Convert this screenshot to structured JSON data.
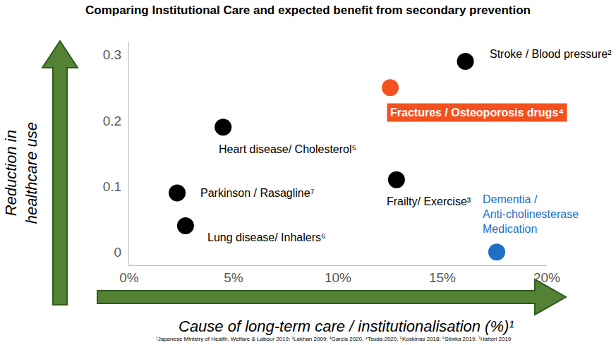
{
  "chart_data": {
    "type": "scatter",
    "title": "Comparing Institutional Care and expected benefit from secondary prevention",
    "x_label": "Cause of long-term care / institutionalisation (%)¹",
    "y_label": "Reduction in\nhealthcare use",
    "point_labels": [
      "Stroke / Blood pressure²",
      "Fractures / Osteoporosis drugs⁴",
      "Heart disease/ Cholesterol⁵",
      "Frailty/ Exercise³",
      "Parkinson / Rasagline⁷",
      "Lung disease/ Inhalers⁶",
      "Dementia /\nAnti-cholinesterase\nMedication"
    ],
    "x": [
      16.1,
      12.5,
      4.5,
      12.8,
      2.3,
      2.7,
      17.6
    ],
    "values": [
      0.29,
      0.25,
      0.19,
      0.11,
      0.09,
      0.04,
      0
    ],
    "colors": [
      "#000000",
      "#f4511e",
      "#000000",
      "#000000",
      "#000000",
      "#000000",
      "#1f6fc5"
    ],
    "marker": "circle",
    "xlim": [
      0,
      20
    ],
    "xticks": [
      {
        "value": 0,
        "label": "0%"
      },
      {
        "value": 5,
        "label": "5%"
      },
      {
        "value": 10,
        "label": "10%"
      },
      {
        "value": 15,
        "label": "15%"
      },
      {
        "value": 20,
        "label": "20%"
      }
    ],
    "ylim": [
      -0.02,
      0.32
    ],
    "yticks": [
      0,
      0.1,
      0.2,
      0.3
    ],
    "grid": false,
    "footnote": "¹Japanese Ministry of Health, Welfare & Labour 2019; ²Lakhan 2009; ³Garcia 2020, ⁴Tsuda 2020, ⁵Koskinas 2018; ⁶Sliwka 2019, ⁷Hattori 2019"
  }
}
